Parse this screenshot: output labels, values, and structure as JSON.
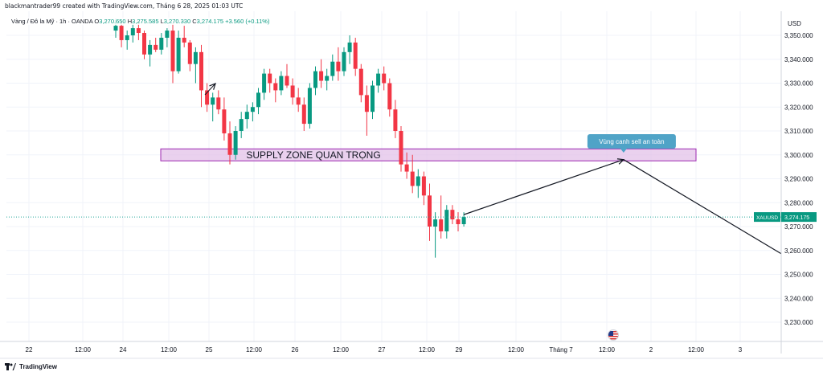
{
  "header": {
    "creator_text": "blackmantrader99 created with TradingView.com, Tháng 6 28, 2025 01:03 UTC"
  },
  "legend": {
    "symbol_text": "Vàng / Đô la Mỹ · 1h · OANDA",
    "o_label": "O",
    "o_value": "3,270.650",
    "h_label": "H",
    "h_value": "3,275.585",
    "l_label": "L",
    "l_value": "3,270.330",
    "c_label": "C",
    "c_value": "3,274.175",
    "change": "+3.560 (+0.11%)"
  },
  "price_axis": {
    "currency": "USD",
    "ticks": [
      "3,350.000",
      "3,340.000",
      "3,330.000",
      "3,320.000",
      "3,310.000",
      "3,300.000",
      "3,290.000",
      "3,280.000",
      "3,270.000",
      "3,260.000",
      "3,250.000",
      "3,240.000",
      "3,230.000"
    ],
    "current_symbol": "XAUUSD",
    "current_price": "3,274.175"
  },
  "time_axis": {
    "ticks": [
      "22",
      "12:00",
      "24",
      "12:00",
      "25",
      "12:00",
      "26",
      "12:00",
      "27",
      "12:00",
      "29",
      "12:00",
      "Tháng 7",
      "12:00",
      "2",
      "12:00",
      "3"
    ]
  },
  "annotations": {
    "supply_zone_label": "SUPPLY ZONE QUAN TRỌNG",
    "callout_label": "Vùng canh sell an toàn"
  },
  "footer": {
    "brand": "TradingView"
  },
  "colors": {
    "up": "#089981",
    "down": "#f23645",
    "zone_fill": "#e1bee7",
    "zone_stroke": "#9c27b0",
    "callout_bg": "#4fa3c7",
    "grid": "#f0f3fa",
    "current_line": "#26a69a"
  },
  "chart_data": {
    "type": "candlestick",
    "symbol": "XAUUSD",
    "timeframe": "1h",
    "y_range": [
      3222,
      3357
    ],
    "supply_zone": [
      3297.5,
      3302.5
    ],
    "projection": [
      {
        "x": 0,
        "y": 3275
      },
      {
        "x": 28,
        "y": 3298
      },
      {
        "x": 68,
        "y": 3241
      }
    ],
    "candles": [
      [
        3352,
        3357,
        3349,
        3354
      ],
      [
        3354,
        3356,
        3345,
        3348
      ],
      [
        3348,
        3352,
        3344,
        3350
      ],
      [
        3350,
        3356,
        3347,
        3353
      ],
      [
        3353,
        3356,
        3348,
        3351
      ],
      [
        3351,
        3352,
        3340,
        3342
      ],
      [
        3342,
        3348,
        3337,
        3346
      ],
      [
        3346,
        3349,
        3343,
        3344
      ],
      [
        3344,
        3351,
        3342,
        3349
      ],
      [
        3349,
        3353,
        3345,
        3352
      ],
      [
        3352,
        3355,
        3330,
        3335
      ],
      [
        3335,
        3352,
        3334,
        3349
      ],
      [
        3349,
        3354,
        3345,
        3347
      ],
      [
        3347,
        3348,
        3335,
        3338
      ],
      [
        3338,
        3345,
        3330,
        3343
      ],
      [
        3343,
        3346,
        3320,
        3327
      ],
      [
        3327,
        3330,
        3318,
        3321
      ],
      [
        3321,
        3326,
        3314,
        3324
      ],
      [
        3324,
        3327,
        3317,
        3319
      ],
      [
        3319,
        3324,
        3306,
        3309
      ],
      [
        3309,
        3314,
        3296,
        3300
      ],
      [
        3300,
        3312,
        3298,
        3310
      ],
      [
        3310,
        3318,
        3307,
        3315
      ],
      [
        3315,
        3321,
        3311,
        3318
      ],
      [
        3318,
        3322,
        3314,
        3320
      ],
      [
        3320,
        3328,
        3317,
        3326
      ],
      [
        3326,
        3336,
        3323,
        3334
      ],
      [
        3334,
        3336,
        3326,
        3330
      ],
      [
        3330,
        3332,
        3322,
        3327
      ],
      [
        3327,
        3335,
        3325,
        3333
      ],
      [
        3333,
        3338,
        3328,
        3329
      ],
      [
        3329,
        3332,
        3321,
        3324
      ],
      [
        3324,
        3328,
        3318,
        3321
      ],
      [
        3321,
        3324,
        3310,
        3313
      ],
      [
        3313,
        3330,
        3311,
        3328
      ],
      [
        3328,
        3337,
        3325,
        3335
      ],
      [
        3335,
        3340,
        3328,
        3331
      ],
      [
        3331,
        3336,
        3327,
        3333
      ],
      [
        3333,
        3342,
        3331,
        3339
      ],
      [
        3339,
        3345,
        3331,
        3335
      ],
      [
        3335,
        3345,
        3333,
        3343
      ],
      [
        3343,
        3350,
        3338,
        3347
      ],
      [
        3347,
        3349,
        3333,
        3336
      ],
      [
        3336,
        3338,
        3322,
        3325
      ],
      [
        3325,
        3329,
        3308,
        3318
      ],
      [
        3318,
        3331,
        3315,
        3329
      ],
      [
        3329,
        3336,
        3326,
        3334
      ],
      [
        3334,
        3337,
        3327,
        3330
      ],
      [
        3330,
        3332,
        3316,
        3319
      ],
      [
        3319,
        3323,
        3307,
        3310
      ],
      [
        3310,
        3312,
        3293,
        3296
      ],
      [
        3296,
        3301,
        3290,
        3293
      ],
      [
        3293,
        3300,
        3284,
        3287
      ],
      [
        3287,
        3294,
        3282,
        3291
      ],
      [
        3291,
        3293,
        3279,
        3283
      ],
      [
        3283,
        3288,
        3264,
        3270
      ],
      [
        3270,
        3276,
        3257,
        3273
      ],
      [
        3273,
        3283,
        3265,
        3268
      ],
      [
        3268,
        3279,
        3265,
        3277
      ],
      [
        3277,
        3279,
        3271,
        3273
      ],
      [
        3273,
        3276,
        3268,
        3271
      ],
      [
        3271,
        3276,
        3270,
        3274
      ]
    ]
  }
}
